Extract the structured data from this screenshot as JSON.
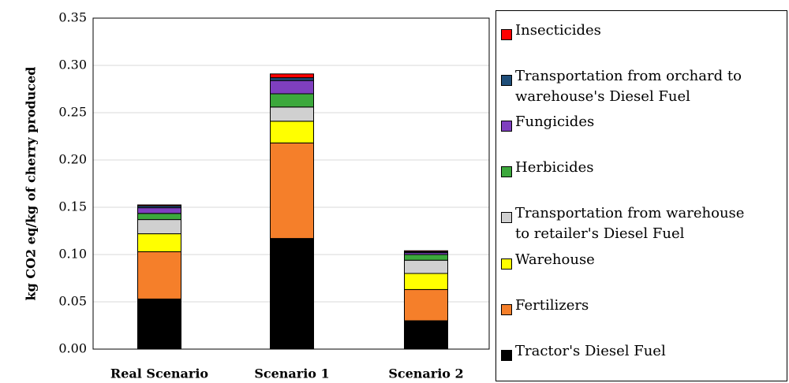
{
  "chart_data": {
    "type": "stacked_bar",
    "y_label": "kg CO2 eq/kg of cherry produced",
    "categories": [
      "Real Scenario",
      "Scenario 1",
      "Scenario 2"
    ],
    "series": [
      {
        "name": "Tractor's Diesel Fuel",
        "color": "#000000",
        "values": [
          0.053,
          0.117,
          0.03
        ]
      },
      {
        "name": "Fertilizers",
        "color": "#f57f2a",
        "values": [
          0.05,
          0.101,
          0.033
        ]
      },
      {
        "name": "Warehouse",
        "color": "#ffff00",
        "values": [
          0.019,
          0.023,
          0.017
        ]
      },
      {
        "name": "Transportation from warehouse to retailer's Diesel Fuel",
        "color": "#d0d0d0",
        "values": [
          0.015,
          0.015,
          0.014
        ]
      },
      {
        "name": "Herbicides",
        "color": "#3ca83c",
        "values": [
          0.0065,
          0.014,
          0.006
        ]
      },
      {
        "name": "Fungicides",
        "color": "#7f3fbf",
        "values": [
          0.006,
          0.014,
          0.002
        ]
      },
      {
        "name": "Transportation from orchard to warehouse's Diesel Fuel",
        "color": "#1f4e79",
        "values": [
          0.002,
          0.003,
          0.001
        ]
      },
      {
        "name": "Insecticides",
        "color": "#ff0000",
        "values": [
          0.001,
          0.004,
          0.001
        ]
      }
    ],
    "ylim": [
      0,
      0.35
    ],
    "yticks": [
      {
        "value": 0,
        "label": "0.00"
      },
      0.05,
      {
        "value": 0.1,
        "label": "0.10"
      },
      0.15,
      {
        "value": 0.2,
        "label": "0.20"
      },
      0.25,
      {
        "value": 0.3,
        "label": "0.30"
      },
      0.35
    ],
    "grid": true
  }
}
